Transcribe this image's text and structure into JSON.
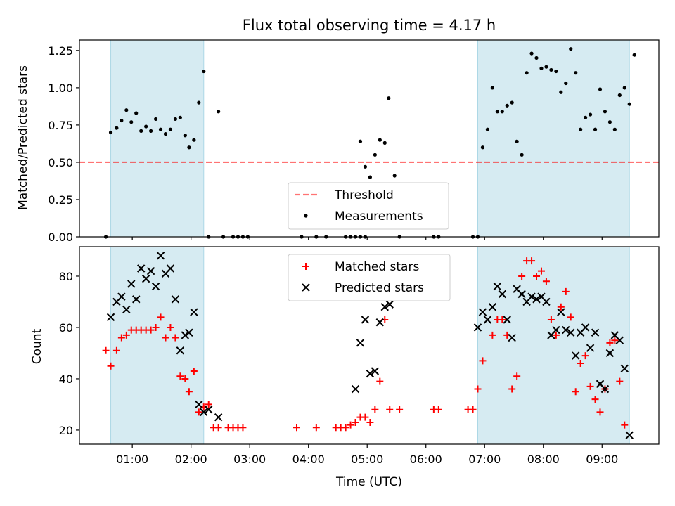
{
  "title": "Flux total observing time = 4.17 h",
  "colors": {
    "shade": "#add8e6",
    "threshold": "#ff0000",
    "measurement": "#000000",
    "matched": "#ff0000",
    "predicted": "#000000"
  },
  "chart_data": [
    {
      "type": "scatter",
      "ylabel": "Matched/Predicted stars",
      "ylim": [
        0,
        1.32
      ],
      "yticks": [
        "0.00",
        "0.25",
        "0.50",
        "0.75",
        "1.00",
        "1.25"
      ],
      "ytick_values": [
        0,
        0.25,
        0.5,
        0.75,
        1.0,
        1.25
      ],
      "shaded_intervals": [
        [
          "00:38",
          "02:13"
        ],
        [
          "06:53",
          "09:28"
        ]
      ],
      "threshold": 0.5,
      "legend": [
        "Threshold",
        "Measurements"
      ],
      "legend_position": "bottom-center",
      "series": [
        {
          "name": "Measurements",
          "points": [
            [
              "00:33",
              0.0
            ],
            [
              "00:38",
              0.7
            ],
            [
              "00:44",
              0.73
            ],
            [
              "00:49",
              0.78
            ],
            [
              "00:54",
              0.85
            ],
            [
              "00:59",
              0.77
            ],
            [
              "01:04",
              0.83
            ],
            [
              "01:09",
              0.71
            ],
            [
              "01:14",
              0.74
            ],
            [
              "01:19",
              0.71
            ],
            [
              "01:24",
              0.79
            ],
            [
              "01:29",
              0.72
            ],
            [
              "01:34",
              0.69
            ],
            [
              "01:39",
              0.72
            ],
            [
              "01:44",
              0.79
            ],
            [
              "01:49",
              0.8
            ],
            [
              "01:54",
              0.68
            ],
            [
              "01:58",
              0.6
            ],
            [
              "02:03",
              0.65
            ],
            [
              "02:08",
              0.9
            ],
            [
              "02:13",
              1.11
            ],
            [
              "02:18",
              0.0
            ],
            [
              "02:28",
              0.84
            ],
            [
              "02:33",
              0.0
            ],
            [
              "02:43",
              0.0
            ],
            [
              "02:48",
              0.0
            ],
            [
              "02:53",
              0.0
            ],
            [
              "02:58",
              0.0
            ],
            [
              "03:53",
              0.0
            ],
            [
              "04:08",
              0.0
            ],
            [
              "04:18",
              0.0
            ],
            [
              "04:38",
              0.0
            ],
            [
              "04:43",
              0.0
            ],
            [
              "04:48",
              0.0
            ],
            [
              "04:53",
              0.0
            ],
            [
              "04:58",
              0.0
            ],
            [
              "04:53",
              0.64
            ],
            [
              "04:58",
              0.47
            ],
            [
              "05:03",
              0.4
            ],
            [
              "05:08",
              0.55
            ],
            [
              "05:13",
              0.65
            ],
            [
              "05:18",
              0.63
            ],
            [
              "05:22",
              0.93
            ],
            [
              "05:28",
              0.41
            ],
            [
              "05:33",
              0.0
            ],
            [
              "06:08",
              0.0
            ],
            [
              "06:13",
              0.0
            ],
            [
              "06:48",
              0.0
            ],
            [
              "06:53",
              0.0
            ],
            [
              "06:58",
              0.6
            ],
            [
              "07:03",
              0.72
            ],
            [
              "07:08",
              1.0
            ],
            [
              "07:13",
              0.84
            ],
            [
              "07:18",
              0.84
            ],
            [
              "07:23",
              0.88
            ],
            [
              "07:28",
              0.9
            ],
            [
              "07:33",
              0.64
            ],
            [
              "07:38",
              0.55
            ],
            [
              "07:43",
              1.1
            ],
            [
              "07:48",
              1.23
            ],
            [
              "07:53",
              1.2
            ],
            [
              "07:58",
              1.13
            ],
            [
              "08:03",
              1.14
            ],
            [
              "08:08",
              1.12
            ],
            [
              "08:13",
              1.11
            ],
            [
              "08:18",
              0.97
            ],
            [
              "08:23",
              1.03
            ],
            [
              "08:28",
              1.26
            ],
            [
              "08:33",
              1.1
            ],
            [
              "08:38",
              0.72
            ],
            [
              "08:43",
              0.8
            ],
            [
              "08:48",
              0.82
            ],
            [
              "08:53",
              0.72
            ],
            [
              "08:58",
              0.99
            ],
            [
              "09:03",
              0.84
            ],
            [
              "09:08",
              0.77
            ],
            [
              "09:13",
              0.72
            ],
            [
              "09:18",
              0.95
            ],
            [
              "09:23",
              1.0
            ],
            [
              "09:28",
              0.89
            ],
            [
              "09:33",
              1.22
            ]
          ]
        }
      ]
    },
    {
      "type": "scatter",
      "xlabel": "Time (UTC)",
      "ylabel": "Count",
      "xlim": [
        "00:06",
        "09:58"
      ],
      "ylim": [
        14.5,
        91.5
      ],
      "xticks": [
        "01:00",
        "02:00",
        "03:00",
        "04:00",
        "05:00",
        "06:00",
        "07:00",
        "08:00",
        "09:00"
      ],
      "yticks": [
        "20",
        "40",
        "60",
        "80"
      ],
      "ytick_values": [
        20,
        40,
        60,
        80
      ],
      "shaded_intervals": [
        [
          "00:38",
          "02:13"
        ],
        [
          "06:53",
          "09:28"
        ]
      ],
      "legend": [
        "Matched stars",
        "Predicted stars"
      ],
      "legend_position": "top-center",
      "series": [
        {
          "name": "Matched stars",
          "points": [
            [
              "00:33",
              51
            ],
            [
              "00:38",
              45
            ],
            [
              "00:44",
              51
            ],
            [
              "00:49",
              56
            ],
            [
              "00:54",
              57
            ],
            [
              "00:59",
              59
            ],
            [
              "01:04",
              59
            ],
            [
              "01:09",
              59
            ],
            [
              "01:14",
              59
            ],
            [
              "01:19",
              59
            ],
            [
              "01:24",
              60
            ],
            [
              "01:29",
              64
            ],
            [
              "01:34",
              56
            ],
            [
              "01:39",
              60
            ],
            [
              "01:44",
              56
            ],
            [
              "01:49",
              41
            ],
            [
              "01:54",
              40
            ],
            [
              "01:58",
              35
            ],
            [
              "02:03",
              43
            ],
            [
              "02:08",
              27
            ],
            [
              "02:13",
              29
            ],
            [
              "02:18",
              30
            ],
            [
              "02:23",
              21
            ],
            [
              "02:28",
              21
            ],
            [
              "02:38",
              21
            ],
            [
              "02:43",
              21
            ],
            [
              "02:48",
              21
            ],
            [
              "02:53",
              21
            ],
            [
              "03:48",
              21
            ],
            [
              "04:08",
              21
            ],
            [
              "04:28",
              21
            ],
            [
              "04:33",
              21
            ],
            [
              "04:38",
              21
            ],
            [
              "04:43",
              22
            ],
            [
              "04:48",
              23
            ],
            [
              "04:53",
              25
            ],
            [
              "04:58",
              25
            ],
            [
              "05:03",
              23
            ],
            [
              "05:08",
              28
            ],
            [
              "05:13",
              39
            ],
            [
              "05:18",
              63
            ],
            [
              "05:23",
              28
            ],
            [
              "05:33",
              28
            ],
            [
              "06:08",
              28
            ],
            [
              "06:13",
              28
            ],
            [
              "06:43",
              28
            ],
            [
              "06:48",
              28
            ],
            [
              "06:53",
              36
            ],
            [
              "06:58",
              47
            ],
            [
              "07:08",
              57
            ],
            [
              "07:13",
              63
            ],
            [
              "07:18",
              63
            ],
            [
              "07:23",
              57
            ],
            [
              "07:28",
              36
            ],
            [
              "07:33",
              41
            ],
            [
              "07:38",
              80
            ],
            [
              "07:43",
              86
            ],
            [
              "07:48",
              86
            ],
            [
              "07:53",
              80
            ],
            [
              "07:58",
              82
            ],
            [
              "08:03",
              78
            ],
            [
              "08:08",
              63
            ],
            [
              "08:13",
              57
            ],
            [
              "08:18",
              68
            ],
            [
              "08:23",
              74
            ],
            [
              "08:28",
              64
            ],
            [
              "08:33",
              35
            ],
            [
              "08:38",
              46
            ],
            [
              "08:43",
              49
            ],
            [
              "08:48",
              37
            ],
            [
              "08:53",
              32
            ],
            [
              "08:58",
              27
            ],
            [
              "09:03",
              36
            ],
            [
              "09:08",
              54
            ],
            [
              "09:13",
              55
            ],
            [
              "09:18",
              39
            ],
            [
              "09:23",
              22
            ]
          ]
        },
        {
          "name": "Predicted stars",
          "points": [
            [
              "00:38",
              64
            ],
            [
              "00:44",
              70
            ],
            [
              "00:49",
              72
            ],
            [
              "00:54",
              67
            ],
            [
              "00:59",
              77
            ],
            [
              "01:04",
              71
            ],
            [
              "01:09",
              83
            ],
            [
              "01:14",
              79
            ],
            [
              "01:19",
              82
            ],
            [
              "01:24",
              76
            ],
            [
              "01:29",
              88
            ],
            [
              "01:34",
              81
            ],
            [
              "01:39",
              83
            ],
            [
              "01:44",
              71
            ],
            [
              "01:49",
              51
            ],
            [
              "01:54",
              57
            ],
            [
              "01:58",
              58
            ],
            [
              "02:03",
              66
            ],
            [
              "02:08",
              30
            ],
            [
              "02:13",
              27
            ],
            [
              "02:18",
              28
            ],
            [
              "02:28",
              25
            ],
            [
              "04:48",
              36
            ],
            [
              "04:53",
              54
            ],
            [
              "04:58",
              63
            ],
            [
              "05:03",
              42
            ],
            [
              "05:08",
              43
            ],
            [
              "05:13",
              62
            ],
            [
              "05:18",
              68
            ],
            [
              "05:23",
              69
            ],
            [
              "06:53",
              60
            ],
            [
              "06:58",
              66
            ],
            [
              "07:03",
              63
            ],
            [
              "07:08",
              68
            ],
            [
              "07:13",
              76
            ],
            [
              "07:18",
              73
            ],
            [
              "07:23",
              63
            ],
            [
              "07:28",
              56
            ],
            [
              "07:33",
              75
            ],
            [
              "07:38",
              73
            ],
            [
              "07:43",
              70
            ],
            [
              "07:48",
              72
            ],
            [
              "07:53",
              71
            ],
            [
              "07:58",
              72
            ],
            [
              "08:03",
              70
            ],
            [
              "08:08",
              57
            ],
            [
              "08:13",
              59
            ],
            [
              "08:18",
              66
            ],
            [
              "08:23",
              59
            ],
            [
              "08:28",
              58
            ],
            [
              "08:33",
              49
            ],
            [
              "08:38",
              58
            ],
            [
              "08:43",
              60
            ],
            [
              "08:48",
              52
            ],
            [
              "08:53",
              58
            ],
            [
              "08:58",
              38
            ],
            [
              "09:03",
              36
            ],
            [
              "09:08",
              50
            ],
            [
              "09:13",
              57
            ],
            [
              "09:18",
              55
            ],
            [
              "09:23",
              44
            ],
            [
              "09:28",
              18
            ]
          ]
        }
      ]
    }
  ]
}
